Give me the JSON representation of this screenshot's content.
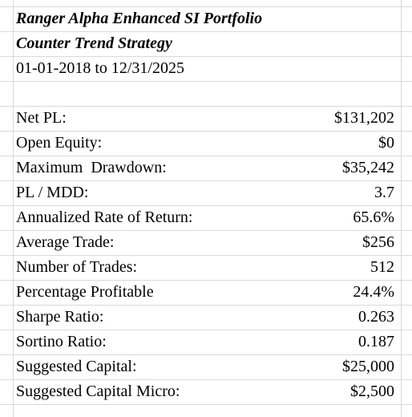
{
  "header": {
    "title": "Ranger Alpha Enhanced SI Portfolio",
    "subtitle": "Counter Trend Strategy",
    "date_range": "01-01-2018 to 12/31/2025"
  },
  "table": {
    "rows": [
      [
        "Net PL:",
        "$131,202"
      ],
      [
        "Open Equity:",
        "$0"
      ],
      [
        "Maximum  Drawdown:",
        "$35,242"
      ],
      [
        "PL / MDD:",
        "3.7"
      ],
      [
        "Annualized Rate of Return:",
        "65.6%"
      ],
      [
        "Average Trade:",
        "$256"
      ],
      [
        "Number of Trades:",
        "512"
      ],
      [
        "Percentage Profitable",
        "24.4%"
      ],
      [
        "Sharpe Ratio:",
        "0.263"
      ],
      [
        "Sortino Ratio:",
        "0.187"
      ],
      [
        "Suggested Capital:",
        "$25,000"
      ],
      [
        "Suggested Capital Micro:",
        "$2,500"
      ]
    ]
  }
}
